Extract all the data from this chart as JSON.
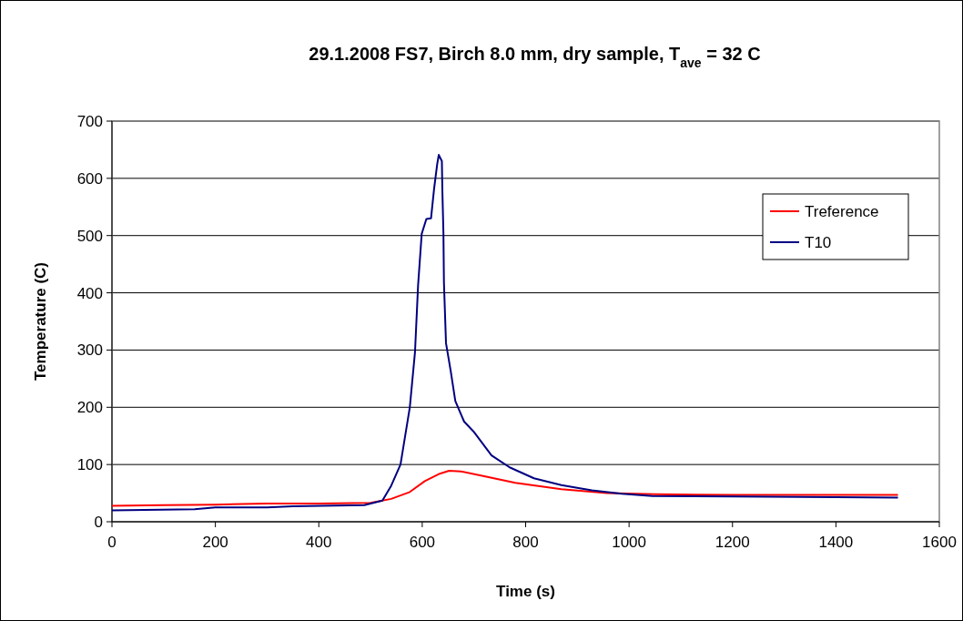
{
  "chart_data": {
    "type": "line",
    "title": "29.1.2008 FS7, Birch 8.0 mm, dry sample, T$_{ave}$ = 32 C",
    "xlabel": "Time  (s)",
    "ylabel": "Temperature (C)",
    "xlim": [
      0,
      1600
    ],
    "xticks": [
      0,
      200,
      400,
      600,
      800,
      1000,
      1200,
      1400,
      1600
    ],
    "ylim": [
      0,
      700
    ],
    "yticks": [
      0,
      100,
      200,
      300,
      400,
      500,
      600,
      700
    ],
    "grid": "y",
    "legend": "top right",
    "series": [
      {
        "name": "Treference",
        "color": "#ff0000",
        "x": [
          0,
          100,
          200,
          300,
          400,
          500,
          540,
          576,
          605,
          634,
          652,
          675,
          722,
          780,
          869,
          957,
          1050,
          1200,
          1400,
          1520
        ],
        "values": [
          28,
          29,
          30,
          32,
          32,
          33,
          40,
          52,
          71,
          84,
          89,
          88,
          79,
          68,
          57,
          50,
          48,
          47,
          47,
          47
        ]
      },
      {
        "name": "T10",
        "color": "#000080",
        "x": [
          0,
          160,
          200,
          300,
          350,
          488,
          523,
          540,
          558,
          576,
          586,
          592,
          599,
          608,
          617,
          623,
          629,
          632,
          638,
          639,
          641,
          642,
          646,
          655,
          664,
          681,
          699,
          734,
          769,
          816,
          869,
          928,
          986,
          1045,
          1200,
          1400,
          1520
        ],
        "values": [
          20,
          22,
          25,
          25,
          27,
          29,
          37,
          63,
          100,
          200,
          296,
          413,
          503,
          529,
          530,
          582,
          625,
          641,
          630,
          577,
          505,
          418,
          312,
          264,
          211,
          175,
          158,
          116,
          95,
          76,
          64,
          55,
          49,
          45,
          44,
          43,
          42
        ]
      }
    ]
  }
}
